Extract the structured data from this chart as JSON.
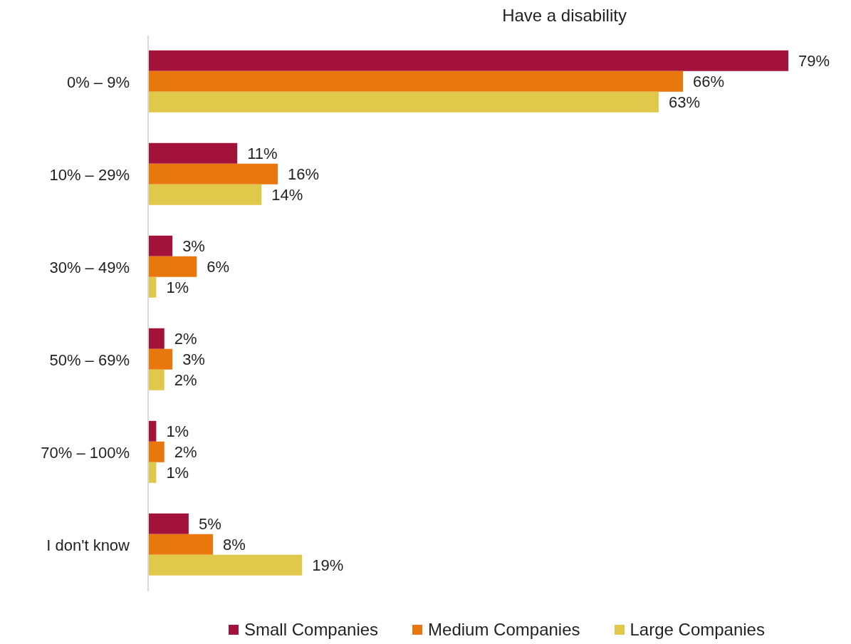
{
  "chart_data": {
    "type": "bar",
    "orientation": "horizontal",
    "title": "Have a disability",
    "tick_labels": "y",
    "categories": [
      "0% – 9%",
      "10% – 29%",
      "30% – 49%",
      "50% – 69%",
      "70% – 100%",
      "I don't know"
    ],
    "series": [
      {
        "name": "Small Companies",
        "color": "#a3123a",
        "values": [
          79,
          11,
          3,
          2,
          1,
          5
        ],
        "value_labels": [
          "79%",
          "11%",
          "3%",
          "2%",
          "1%",
          "5%"
        ]
      },
      {
        "name": "Medium Companies",
        "color": "#e8770e",
        "values": [
          66,
          16,
          6,
          3,
          2,
          8
        ],
        "value_labels": [
          "66%",
          "16%",
          "6%",
          "3%",
          "2%",
          "8%"
        ]
      },
      {
        "name": "Large Companies",
        "color": "#e0c84a",
        "values": [
          63,
          14,
          1,
          2,
          1,
          19
        ],
        "value_labels": [
          "63%",
          "14%",
          "1%",
          "2%",
          "1%",
          "19%"
        ]
      }
    ],
    "legend": "bottom",
    "grid": false
  }
}
